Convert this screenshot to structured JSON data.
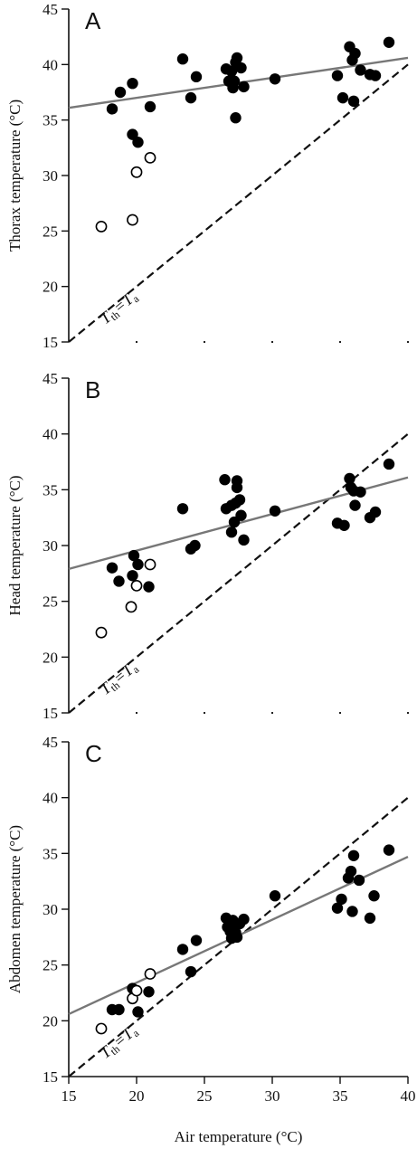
{
  "chart_data": [
    {
      "type": "scatter",
      "panel_label": "A",
      "ylabel": "Thorax temperature (°C)",
      "xlabel": "",
      "xlim": [
        15,
        40
      ],
      "ylim": [
        15,
        45
      ],
      "yticks": [
        15,
        20,
        25,
        30,
        35,
        40,
        45
      ],
      "xticks": [],
      "identity_label": "T_th=T_a",
      "regression": {
        "x": [
          15,
          40
        ],
        "y": [
          36.1,
          40.6
        ],
        "color": "#777777"
      },
      "series": [
        {
          "marker": "filled",
          "points": [
            [
              18.2,
              36.0
            ],
            [
              18.8,
              37.5
            ],
            [
              19.7,
              38.3
            ],
            [
              19.7,
              33.7
            ],
            [
              20.1,
              33.0
            ],
            [
              21.0,
              36.2
            ],
            [
              23.4,
              40.5
            ],
            [
              24.0,
              37.0
            ],
            [
              24.4,
              38.9
            ],
            [
              26.6,
              39.6
            ],
            [
              26.8,
              38.5
            ],
            [
              27.0,
              39.4
            ],
            [
              27.1,
              37.9
            ],
            [
              27.2,
              38.5
            ],
            [
              27.3,
              40.2
            ],
            [
              27.4,
              40.6
            ],
            [
              27.3,
              35.2
            ],
            [
              27.7,
              39.7
            ],
            [
              27.9,
              38.0
            ],
            [
              30.2,
              38.7
            ],
            [
              34.8,
              39.0
            ],
            [
              35.2,
              37.0
            ],
            [
              35.7,
              41.6
            ],
            [
              35.9,
              40.4
            ],
            [
              36.0,
              36.7
            ],
            [
              36.1,
              41.0
            ],
            [
              36.5,
              39.5
            ],
            [
              37.2,
              39.1
            ],
            [
              37.6,
              39.0
            ],
            [
              38.6,
              42.0
            ]
          ]
        },
        {
          "marker": "open",
          "points": [
            [
              17.4,
              25.4
            ],
            [
              19.7,
              26.0
            ],
            [
              20.0,
              30.3
            ],
            [
              21.0,
              31.6
            ]
          ]
        }
      ]
    },
    {
      "type": "scatter",
      "panel_label": "B",
      "ylabel": "Head temperature (°C)",
      "xlabel": "",
      "xlim": [
        15,
        40
      ],
      "ylim": [
        15,
        45
      ],
      "yticks": [
        15,
        20,
        25,
        30,
        35,
        40,
        45
      ],
      "xticks": [],
      "identity_label": "T_th=T_a",
      "regression": {
        "x": [
          15,
          40
        ],
        "y": [
          27.9,
          36.1
        ],
        "color": "#777777"
      },
      "series": [
        {
          "marker": "filled",
          "points": [
            [
              18.2,
              28.0
            ],
            [
              18.7,
              26.8
            ],
            [
              19.7,
              27.3
            ],
            [
              19.8,
              29.1
            ],
            [
              20.1,
              28.3
            ],
            [
              20.9,
              26.3
            ],
            [
              23.4,
              33.3
            ],
            [
              24.0,
              29.7
            ],
            [
              24.3,
              30.0
            ],
            [
              26.5,
              35.9
            ],
            [
              26.6,
              33.3
            ],
            [
              27.0,
              33.6
            ],
            [
              27.0,
              31.2
            ],
            [
              27.2,
              32.1
            ],
            [
              27.3,
              33.8
            ],
            [
              27.4,
              35.2
            ],
            [
              27.4,
              35.8
            ],
            [
              27.6,
              34.1
            ],
            [
              27.7,
              32.7
            ],
            [
              27.9,
              30.5
            ],
            [
              30.2,
              33.1
            ],
            [
              34.8,
              32.0
            ],
            [
              35.3,
              31.8
            ],
            [
              35.7,
              36.0
            ],
            [
              35.8,
              35.2
            ],
            [
              36.0,
              34.9
            ],
            [
              36.1,
              33.6
            ],
            [
              36.5,
              34.8
            ],
            [
              37.2,
              32.5
            ],
            [
              37.6,
              33.0
            ],
            [
              38.6,
              37.3
            ]
          ]
        },
        {
          "marker": "open",
          "points": [
            [
              17.4,
              22.2
            ],
            [
              19.6,
              24.5
            ],
            [
              20.0,
              26.4
            ],
            [
              21.0,
              28.3
            ]
          ]
        }
      ]
    },
    {
      "type": "scatter",
      "panel_label": "C",
      "ylabel": "Abdomen temperature (°C)",
      "xlabel": "Air temperature (°C)",
      "xlim": [
        15,
        40
      ],
      "ylim": [
        15,
        45
      ],
      "yticks": [
        15,
        20,
        25,
        30,
        35,
        40,
        45
      ],
      "xticks": [
        15,
        20,
        25,
        30,
        35,
        40
      ],
      "identity_label": "T_th=T_a",
      "regression": {
        "x": [
          15,
          40
        ],
        "y": [
          20.6,
          34.7
        ],
        "color": "#777777"
      },
      "series": [
        {
          "marker": "filled",
          "points": [
            [
              18.2,
              21.0
            ],
            [
              18.7,
              21.0
            ],
            [
              19.7,
              22.9
            ],
            [
              19.9,
              22.7
            ],
            [
              20.1,
              20.8
            ],
            [
              20.9,
              22.6
            ],
            [
              23.4,
              26.4
            ],
            [
              24.0,
              24.4
            ],
            [
              24.4,
              27.2
            ],
            [
              26.6,
              29.2
            ],
            [
              26.7,
              28.4
            ],
            [
              26.9,
              28.0
            ],
            [
              27.0,
              27.4
            ],
            [
              27.1,
              29.0
            ],
            [
              27.2,
              28.6
            ],
            [
              27.3,
              27.9
            ],
            [
              27.4,
              27.5
            ],
            [
              27.6,
              28.7
            ],
            [
              27.9,
              29.1
            ],
            [
              30.2,
              31.2
            ],
            [
              34.8,
              30.1
            ],
            [
              35.1,
              30.9
            ],
            [
              35.6,
              32.8
            ],
            [
              35.8,
              33.4
            ],
            [
              35.9,
              29.8
            ],
            [
              36.0,
              34.8
            ],
            [
              36.4,
              32.6
            ],
            [
              37.2,
              29.2
            ],
            [
              37.5,
              31.2
            ],
            [
              38.6,
              35.3
            ]
          ]
        },
        {
          "marker": "open",
          "points": [
            [
              17.4,
              19.3
            ],
            [
              19.7,
              22.0
            ],
            [
              20.0,
              22.7
            ],
            [
              21.0,
              24.2
            ]
          ]
        }
      ]
    }
  ]
}
